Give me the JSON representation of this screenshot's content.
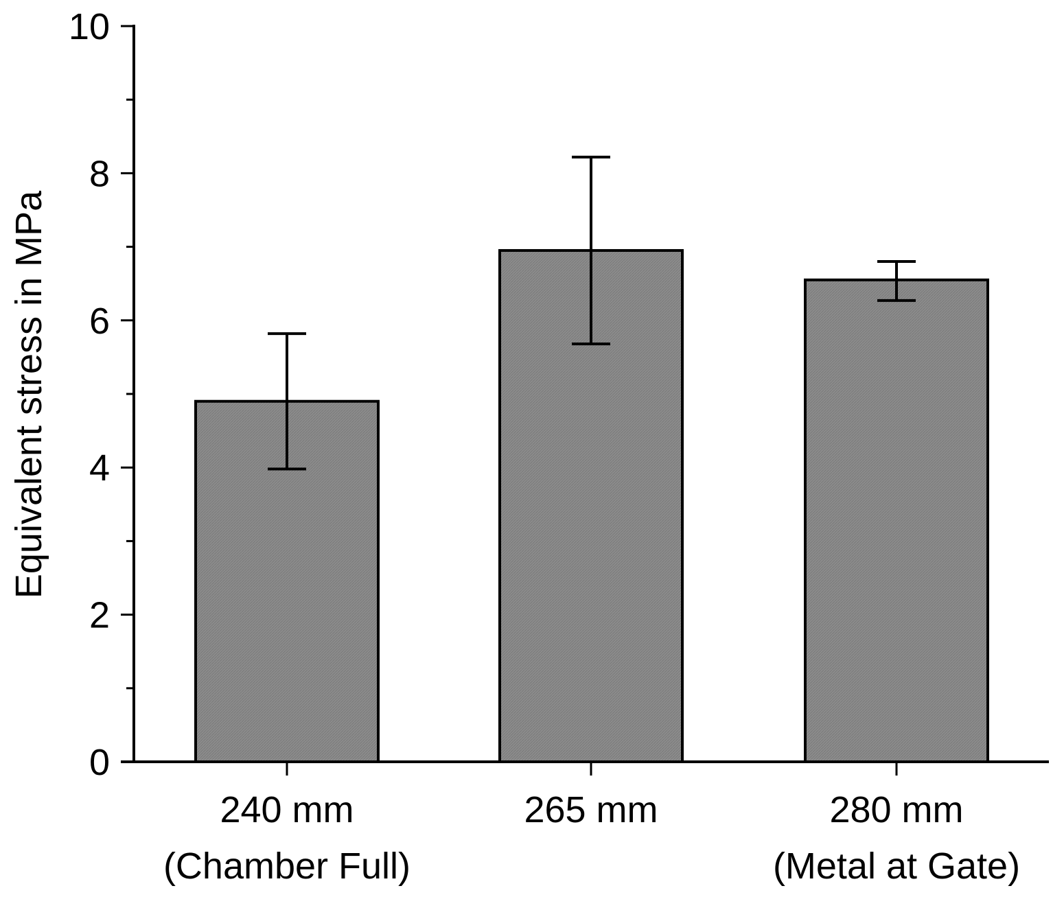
{
  "chart_data": {
    "type": "bar",
    "title": "",
    "xlabel": "",
    "ylabel": "Equivalent stress in MPa",
    "categories": [
      {
        "line1": "240 mm",
        "line2": "(Chamber Full)"
      },
      {
        "line1": "265 mm",
        "line2": ""
      },
      {
        "line1": "280 mm",
        "line2": "(Metal at Gate)"
      }
    ],
    "values": [
      4.9,
      6.95,
      6.55
    ],
    "error_low": [
      3.98,
      5.68,
      6.27
    ],
    "error_high": [
      5.82,
      8.22,
      6.8
    ],
    "ylim": [
      0,
      10
    ],
    "major_ticks": [
      0,
      2,
      4,
      6,
      8,
      10
    ],
    "minor_ticks": [
      1,
      3,
      5,
      7,
      9
    ],
    "grid": false,
    "bar_color": "#8c8c8c",
    "edge_color": "#000000"
  }
}
